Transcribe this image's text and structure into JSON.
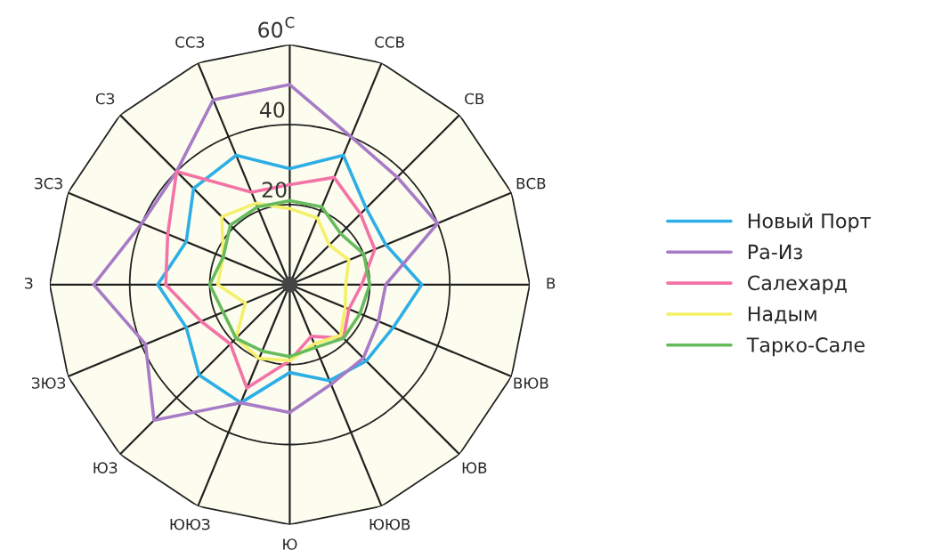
{
  "chart_data": {
    "type": "radar",
    "categories": [
      "С",
      "ССВ",
      "СВ",
      "ВСВ",
      "В",
      "ВЮВ",
      "ЮВ",
      "ЮЮВ",
      "Ю",
      "ЮЮЗ",
      "ЮЗ",
      "ЗЮЗ",
      "З",
      "ЗСЗ",
      "СЗ",
      "ССЗ"
    ],
    "series": [
      {
        "name": "Новый Порт",
        "color": "#2eaee6",
        "values": [
          29,
          35,
          27,
          26,
          33,
          28,
          27,
          26,
          22,
          32,
          32,
          28,
          33,
          28,
          34,
          35
        ]
      },
      {
        "name": "Ра-Из",
        "color": "#a77bc6",
        "values": [
          50,
          40,
          38,
          40,
          24,
          24,
          26,
          27,
          32,
          32,
          48,
          39,
          49,
          40,
          40,
          50
        ]
      },
      {
        "name": "Салехард",
        "color": "#f373a6",
        "values": [
          25,
          29,
          25,
          23,
          18,
          16,
          19,
          14,
          19,
          28,
          21,
          24,
          31,
          33,
          40,
          25
        ]
      },
      {
        "name": "Надым",
        "color": "#f4f06a",
        "values": [
          19,
          18,
          14,
          16,
          14,
          15,
          18,
          16,
          19,
          20,
          19,
          12,
          18,
          18,
          24,
          22
        ]
      },
      {
        "name": "Тарко-Сале",
        "color": "#66bb5c",
        "values": [
          21,
          21,
          18,
          20,
          20,
          19,
          19,
          17,
          18,
          18,
          19,
          18,
          20,
          18,
          21,
          21
        ]
      }
    ],
    "ylim": [
      0,
      60
    ],
    "yticks": [
      20,
      40,
      60
    ],
    "grid": true,
    "legend": "right"
  }
}
